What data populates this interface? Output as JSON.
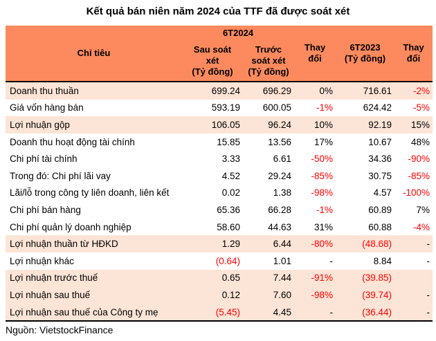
{
  "title": "Kết quả bán niên năm 2024 của TTF đã được soát xét",
  "source": "Nguồn: VietstockFinance",
  "colors": {
    "header_bg": "#FC8A5E",
    "row_highlight": "#FCE4D6",
    "negative_text": "#FF0000",
    "text": "#000000",
    "border": "#000000"
  },
  "table": {
    "header": {
      "indicator": "Chỉ tiêu",
      "group_2024": "6T2024",
      "sub_after_review": "Sau soát\nxét\n(Tỷ đồng)",
      "sub_before_review": "Trước\nsoát xét\n(Tỷ đồng)",
      "change_1": "Thay\nđổi",
      "col_2023": "6T2023\n(Tỷ đồng)",
      "change_2": "Thay\nđổi"
    },
    "highlight_rows": [
      0,
      2,
      9,
      11,
      12,
      13
    ]
  },
  "chart_data": {
    "type": "table",
    "title": "Kết quả bán niên năm 2024 của TTF đã được soát xét",
    "columns": [
      "Chỉ tiêu",
      "6T2024 Sau soát xét (Tỷ đồng)",
      "6T2024 Trước soát xét (Tỷ đồng)",
      "Thay đổi",
      "6T2023 (Tỷ đồng)",
      "Thay đổi"
    ],
    "rows": [
      [
        "Doanh thu thuần",
        "699.24",
        "696.29",
        "0%",
        "716.61",
        "-2%"
      ],
      [
        "Giá vốn hàng bán",
        "593.19",
        "600.05",
        "-1%",
        "624.42",
        "-5%"
      ],
      [
        "Lợi nhuận gộp",
        "106.05",
        "96.24",
        "10%",
        "92.19",
        "15%"
      ],
      [
        "Doanh thu hoạt động tài chính",
        "15.85",
        "13.56",
        "17%",
        "10.67",
        "48%"
      ],
      [
        "Chi phí tài chính",
        "3.33",
        "6.61",
        "-50%",
        "34.36",
        "-90%"
      ],
      [
        "Trong đó: Chi phí lãi vay",
        "4.52",
        "29.24",
        "-85%",
        "30.75",
        "-85%"
      ],
      [
        "Lãi/lỗ trong công ty liên doanh, liên kết",
        "0.02",
        "1.38",
        "-98%",
        "4.57",
        "-100%"
      ],
      [
        "Chi phí bán hàng",
        "65.36",
        "66.28",
        "-1%",
        "60.89",
        "7%"
      ],
      [
        "Chi phí quản lý doanh nghiệp",
        "58.60",
        "44.63",
        "31%",
        "60.88",
        "-4%"
      ],
      [
        "Lợi nhuận thuần từ HĐKD",
        "1.29",
        "6.44",
        "-80%",
        "(48.68)",
        "-"
      ],
      [
        "Lợi nhuận khác",
        "(0.64)",
        "1.01",
        "-",
        "8.84",
        "-"
      ],
      [
        "Lợi nhuận trước thuế",
        "0.65",
        "7.44",
        "-91%",
        "(39.85)",
        ""
      ],
      [
        "Lợi nhuận sau thuế",
        "0.12",
        "7.60",
        "-98%",
        "(39.74)",
        "-"
      ],
      [
        "Lợi nhuận sau thuế của Công ty mẹ",
        "(5.45)",
        "4.45",
        "-",
        "(36.44)",
        "-"
      ]
    ],
    "source": "Nguồn: VietstockFinance"
  }
}
